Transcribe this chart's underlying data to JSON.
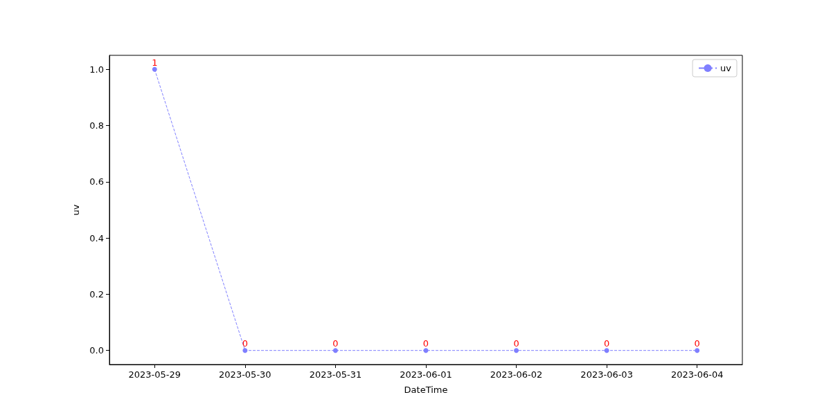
{
  "chart_data": {
    "type": "line",
    "xlabel": "DateTime",
    "ylabel": "uv",
    "categories": [
      "2023-05-29",
      "2023-05-30",
      "2023-05-31",
      "2023-06-01",
      "2023-06-02",
      "2023-06-03",
      "2023-06-04"
    ],
    "series": [
      {
        "name": "uv",
        "color": "#7f7fff",
        "values": [
          1,
          0,
          0,
          0,
          0,
          0,
          0
        ]
      }
    ],
    "ylim": [
      -0.05,
      1.05
    ],
    "yticks": [
      {
        "value": 0,
        "label": "0.0"
      },
      0.2,
      0.4,
      0.6,
      0.8,
      {
        "value": 1,
        "label": "1.0"
      }
    ],
    "grid": false,
    "legend": "top right",
    "marker": "circle",
    "line_style": "dashed",
    "data_labels": true
  }
}
